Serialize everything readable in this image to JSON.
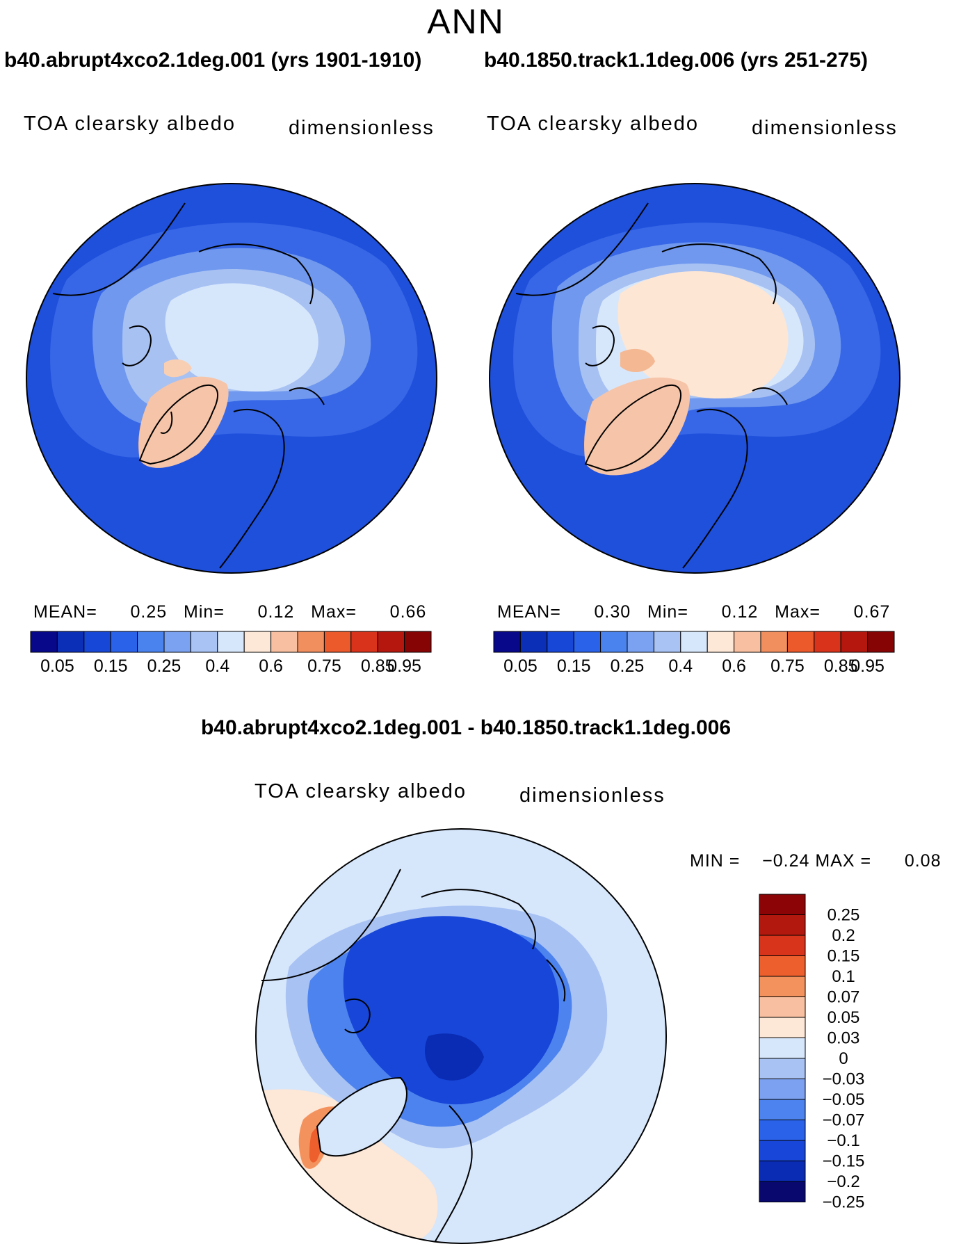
{
  "season": "ANN",
  "colors": {
    "abs_scale": [
      "#08088a",
      "#0c2fb8",
      "#1747d6",
      "#2a62ea",
      "#4a83ee",
      "#7aa2f0",
      "#a8c3f4",
      "#d6e6fb",
      "#fde7d6",
      "#f8c0a0",
      "#f28f5f",
      "#ec5a2c",
      "#d9331c",
      "#b5170e",
      "#870405"
    ],
    "diff_scale": [
      "#08086e",
      "#0a2bb4",
      "#1746d8",
      "#2a62ea",
      "#4d83ee",
      "#7ca1f0",
      "#a8c2f3",
      "#d6e6fb",
      "#fde7d6",
      "#f8c0a0",
      "#f4925e",
      "#ed5f2c",
      "#d8331b",
      "#b3180e",
      "#8c0406"
    ]
  },
  "panels": [
    {
      "case_title": "b40.abrupt4xco2.1deg.001 (yrs 1901-1910)",
      "variable": "TOA clearsky albedo",
      "units": "dimensionless",
      "stats": {
        "mean_label": "MEAN=",
        "mean": "0.25",
        "min_label": "Min=",
        "min": "0.12",
        "max_label": "Max=",
        "max": "0.66"
      },
      "colorbar_ticks": [
        "0.05",
        "0.15",
        "0.25",
        "0.4",
        "0.6",
        "0.75",
        "0.85",
        "0.95"
      ]
    },
    {
      "case_title": "b40.1850.track1.1deg.006 (yrs 251-275)",
      "variable": "TOA clearsky albedo",
      "units": "dimensionless",
      "stats": {
        "mean_label": "MEAN=",
        "mean": "0.30",
        "min_label": "Min=",
        "min": "0.12",
        "max_label": "Max=",
        "max": "0.67"
      },
      "colorbar_ticks": [
        "0.05",
        "0.15",
        "0.25",
        "0.4",
        "0.6",
        "0.75",
        "0.85",
        "0.95"
      ]
    }
  ],
  "difference": {
    "title": "b40.abrupt4xco2.1deg.001 - b40.1850.track1.1deg.006",
    "variable": "TOA clearsky albedo",
    "units": "dimensionless",
    "min_label": "MIN =",
    "min": "−0.24",
    "max_label": "MAX =",
    "max": "0.08",
    "colorbar_ticks": [
      "0.25",
      "0.2",
      "0.15",
      "0.1",
      "0.07",
      "0.05",
      "0.03",
      "0",
      "−0.03",
      "−0.05",
      "−0.07",
      "−0.1",
      "−0.15",
      "−0.2",
      "−0.25"
    ]
  }
}
